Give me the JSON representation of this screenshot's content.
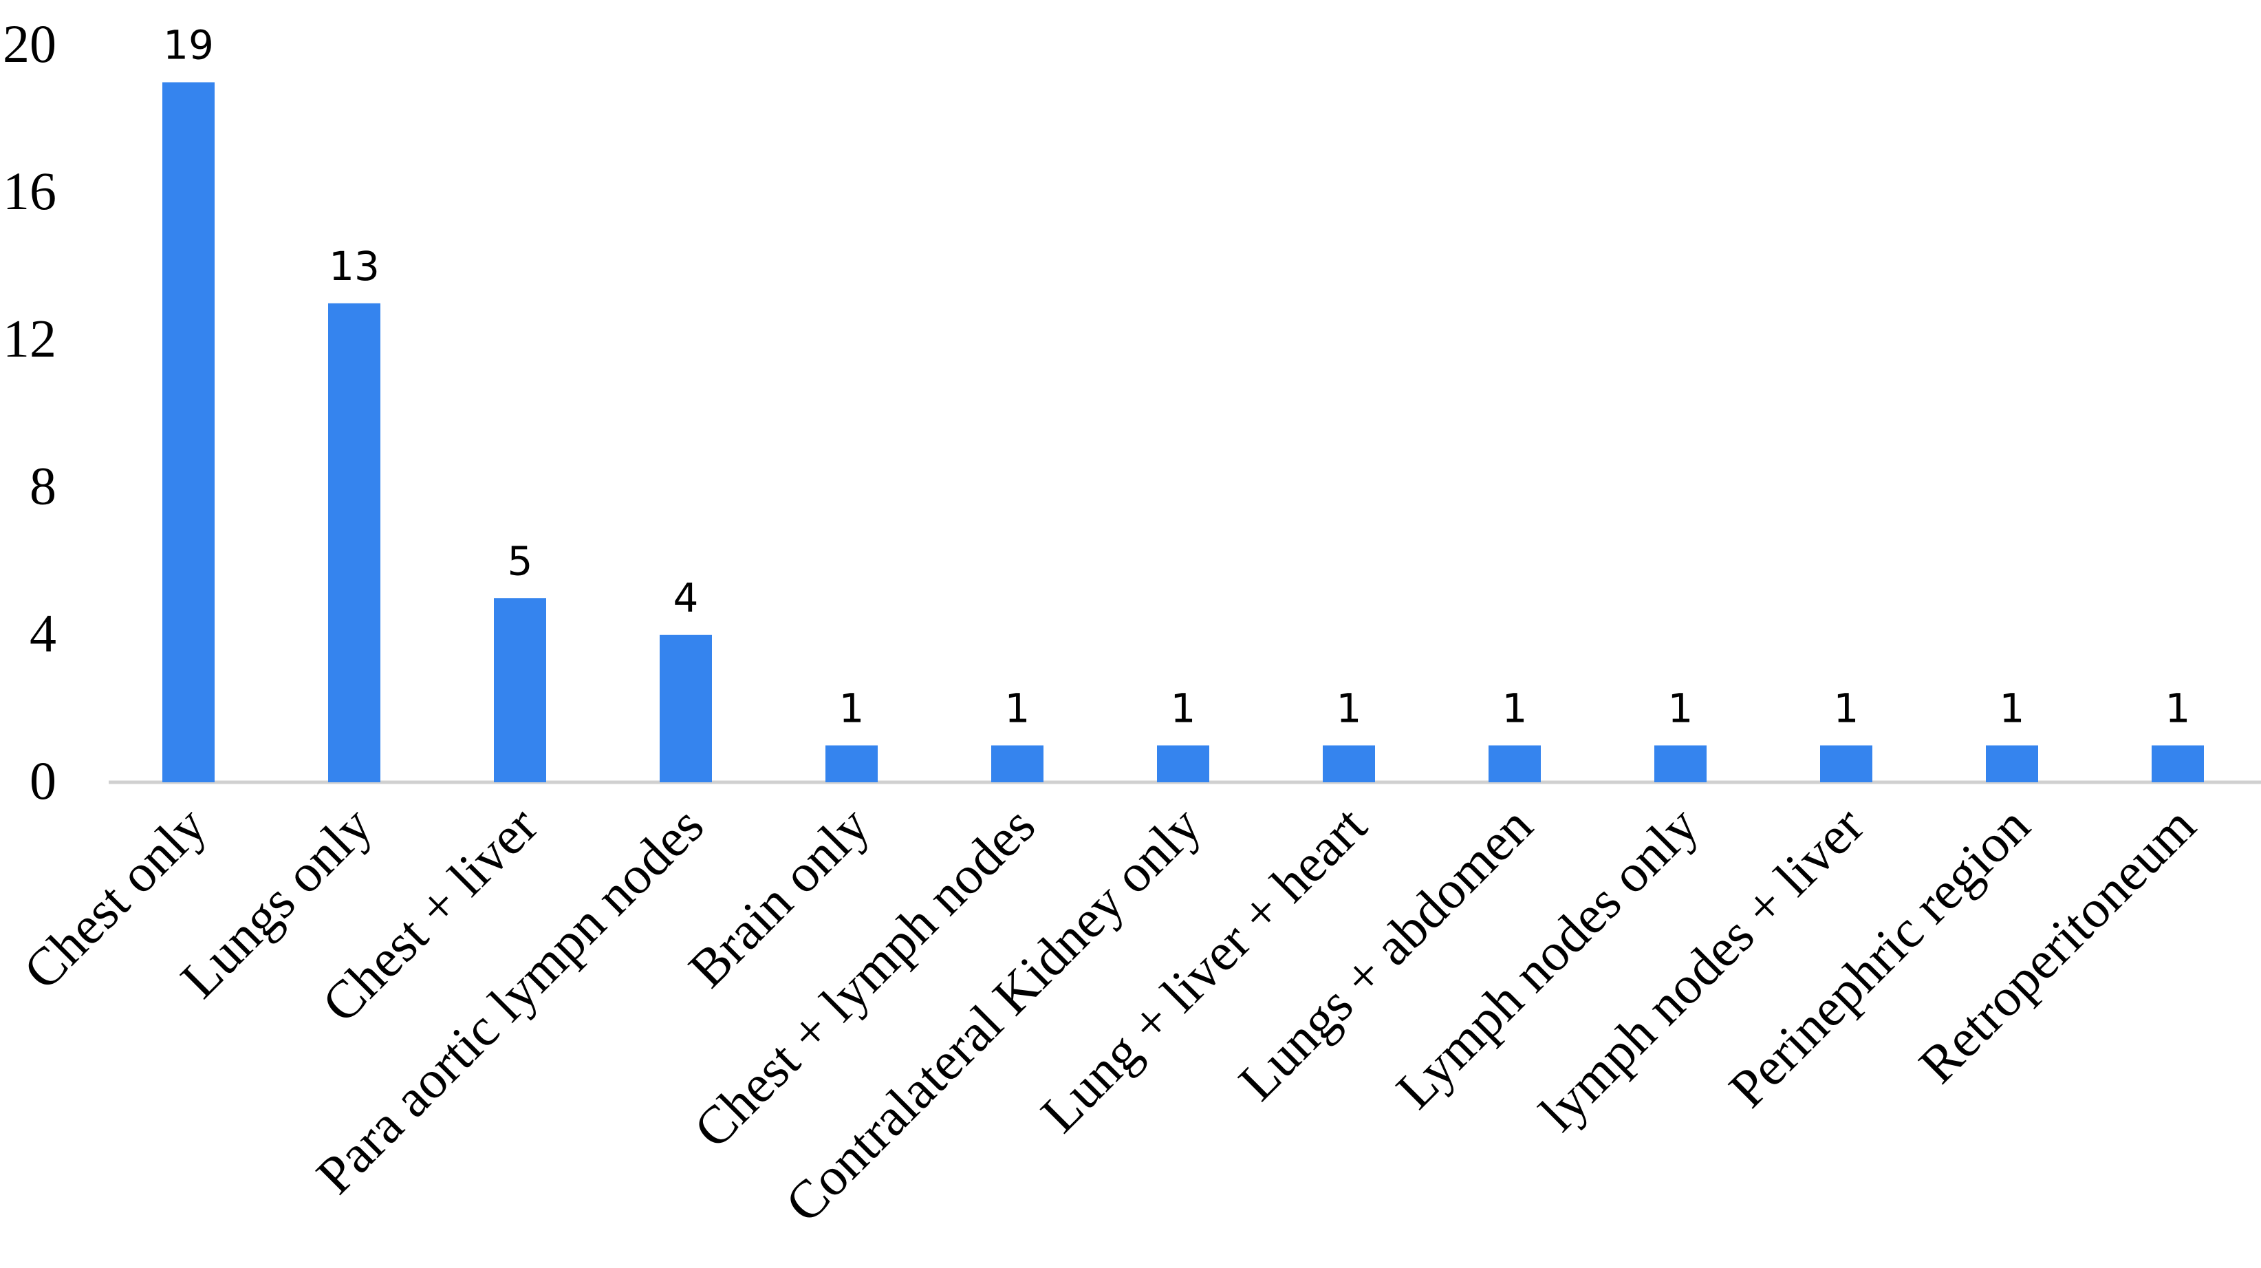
{
  "chart_data": {
    "type": "bar",
    "title": "",
    "xlabel": "",
    "ylabel": "",
    "categories": [
      "Chest only",
      "Lungs only",
      "Chest + liver",
      "Para aortic lympn nodes",
      "Brain only",
      "Chest + lymph nodes",
      "Contralateral Kidney only",
      "Lung + liver + heart",
      "Lungs + abdomen",
      "Lymph nodes only",
      "lymph nodes + liver",
      "Perinephric region",
      "Retroperitoneum"
    ],
    "values": [
      19,
      13,
      5,
      4,
      1,
      1,
      1,
      1,
      1,
      1,
      1,
      1,
      1
    ],
    "data_labels": [
      "19",
      "13",
      "5",
      "4",
      "1",
      "1",
      "1",
      "1",
      "1",
      "1",
      "1",
      "1",
      "1"
    ],
    "ylim": [
      0,
      20
    ],
    "yticks": [
      0,
      4,
      8,
      12,
      16,
      20
    ],
    "ytick_labels": [
      "0",
      "4",
      "8",
      "12",
      "16",
      "20"
    ],
    "grid": false,
    "legend": "none",
    "bar_color": "#3584ee"
  }
}
